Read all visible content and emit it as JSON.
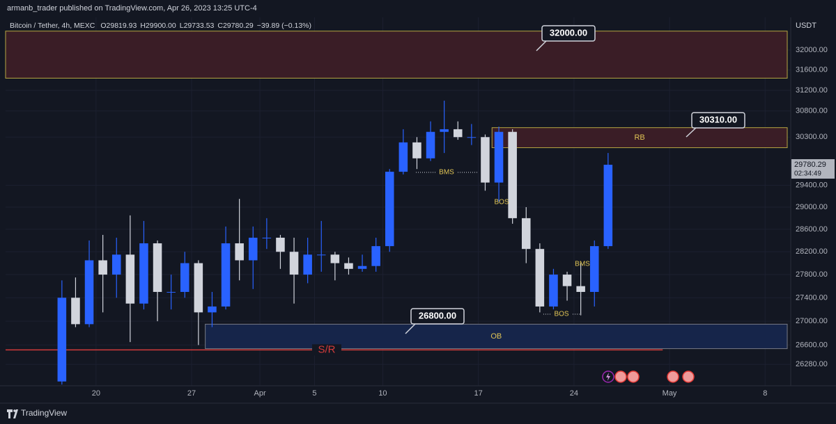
{
  "header": {
    "title": "armanb_trader published on TradingView.com, Apr 26, 2023 13:25 UTC-4",
    "brand": "TradingView"
  },
  "chart_data": {
    "type": "candlestick",
    "legend": [
      "Bitcoin / Tether, 4h, MEXC",
      "O29819.93",
      "H29900.00",
      "L29733.53",
      "C29780.29",
      "−39.89 (−0.13%)"
    ],
    "y_unit": "USDT",
    "up_color": "#2962ff",
    "down_color": "#d1d4dc",
    "log": true,
    "grid": true,
    "x": [
      "2023-03-17",
      "2023-03-18",
      "2023-03-19",
      "2023-03-20",
      "2023-03-21",
      "2023-03-22",
      "2023-03-23",
      "2023-03-24",
      "2023-03-25",
      "2023-03-26",
      "2023-03-27",
      "2023-03-28",
      "2023-03-29",
      "2023-03-30",
      "2023-03-31",
      "2023-04-01",
      "2023-04-02",
      "2023-04-03",
      "2023-04-04",
      "2023-04-05",
      "2023-04-06",
      "2023-04-07",
      "2023-04-08",
      "2023-04-09",
      "2023-04-10",
      "2023-04-11",
      "2023-04-12",
      "2023-04-13",
      "2023-04-14",
      "2023-04-15",
      "2023-04-16",
      "2023-04-17",
      "2023-04-18",
      "2023-04-19",
      "2023-04-20",
      "2023-04-21",
      "2023-04-22",
      "2023-04-23",
      "2023-04-24",
      "2023-04-25",
      "2023-04-26"
    ],
    "open": [
      26000,
      27400,
      26950,
      28050,
      27800,
      28150,
      27300,
      28350,
      27500,
      27500,
      28000,
      27150,
      27250,
      28350,
      28050,
      28450,
      28450,
      28200,
      27800,
      28150,
      28150,
      28000,
      27900,
      27950,
      28300,
      29650,
      30200,
      29900,
      30400,
      30450,
      30300,
      30300,
      29450,
      30400,
      28800,
      28250,
      27250,
      27800,
      27600,
      27500,
      28300
    ],
    "high": [
      27700,
      27750,
      28400,
      28500,
      28450,
      28850,
      28750,
      28400,
      27800,
      28200,
      28050,
      27500,
      28650,
      29150,
      28650,
      28800,
      28500,
      28450,
      28450,
      28750,
      28200,
      28100,
      28150,
      28450,
      29700,
      30450,
      30300,
      30600,
      31000,
      30600,
      30550,
      30350,
      30500,
      30450,
      29000,
      28350,
      27900,
      27850,
      28000,
      28400,
      30000
    ],
    "low": [
      25950,
      26900,
      26900,
      27150,
      27400,
      26650,
      27200,
      27000,
      27200,
      27400,
      26600,
      26900,
      27200,
      27700,
      27550,
      28250,
      27900,
      27300,
      27650,
      27850,
      27700,
      27800,
      27850,
      27850,
      28200,
      29600,
      29700,
      29850,
      30000,
      30250,
      30150,
      29300,
      29100,
      28700,
      28000,
      27150,
      27150,
      27350,
      27100,
      27250,
      28250
    ],
    "close": [
      27400,
      26950,
      28050,
      27800,
      28150,
      27300,
      28350,
      27500,
      27500,
      28000,
      27150,
      27250,
      28350,
      28050,
      28450,
      28450,
      28200,
      27800,
      28150,
      28150,
      28000,
      27900,
      27950,
      28300,
      29650,
      30200,
      29900,
      30400,
      30450,
      30300,
      30300,
      29450,
      30400,
      28800,
      28250,
      27250,
      27800,
      27600,
      27500,
      28300,
      29780.29
    ],
    "countdown": "02:34:49",
    "xlim": [
      "2023-03-13T09:00:00Z",
      "2023-05-09T21:00:00Z"
    ],
    "xticks": [
      {
        "value": "2023-03-20",
        "label": "20"
      },
      {
        "value": "2023-03-27",
        "label": "27"
      },
      {
        "value": "2023-04-01",
        "label": "Apr"
      },
      {
        "value": "2023-04-05",
        "label": "5"
      },
      {
        "value": "2023-04-10",
        "label": "10"
      },
      {
        "value": "2023-04-17",
        "label": "17"
      },
      {
        "value": "2023-04-24",
        "label": "24"
      },
      {
        "value": "2023-05-01",
        "label": "May"
      },
      {
        "value": "2023-05-08",
        "label": "8"
      }
    ],
    "ylim": [
      25930,
      32660
    ],
    "yticks": [
      {
        "value": 32000,
        "label": "32000.00"
      },
      {
        "value": 31600,
        "label": "31600.00"
      },
      {
        "value": 31200,
        "label": "31200.00"
      },
      {
        "value": 30800,
        "label": "30800.00"
      },
      {
        "value": 30300,
        "label": "30300.00"
      },
      {
        "value": 29400,
        "label": "29400.00"
      },
      {
        "value": 29000,
        "label": "29000.00"
      },
      {
        "value": 28600,
        "label": "28600.00"
      },
      {
        "value": 28200,
        "label": "28200.00"
      },
      {
        "value": 27800,
        "label": "27800.00"
      },
      {
        "value": 27400,
        "label": "27400.00"
      },
      {
        "value": 27000,
        "label": "27000.00"
      },
      {
        "value": 26600,
        "label": "26600.00"
      },
      {
        "value": 26280,
        "label": "26280.00"
      }
    ],
    "zones": [
      {
        "low": 31440,
        "high": 32380,
        "color": "#3a1d26",
        "edge": "#b5a642"
      },
      {
        "low": 30100,
        "high": 30480,
        "start": "2023-04-18",
        "color": "#3a1d26",
        "edge": "#b5a642",
        "label": "RB"
      },
      {
        "low": 26540,
        "high": 26950,
        "start": "2023-03-28",
        "color": "#16254a",
        "edge": "#787b86",
        "label": "OB"
      }
    ],
    "sr_line": {
      "value": 26520,
      "end": "2023-04-30T12:00:00Z",
      "color": "#d43b3b",
      "label": "S/R"
    },
    "annotations": [
      "BMS",
      "BOS",
      "BMS",
      "BOS"
    ],
    "callouts": [
      "32000.00",
      "30310.00",
      "26800.00"
    ]
  }
}
